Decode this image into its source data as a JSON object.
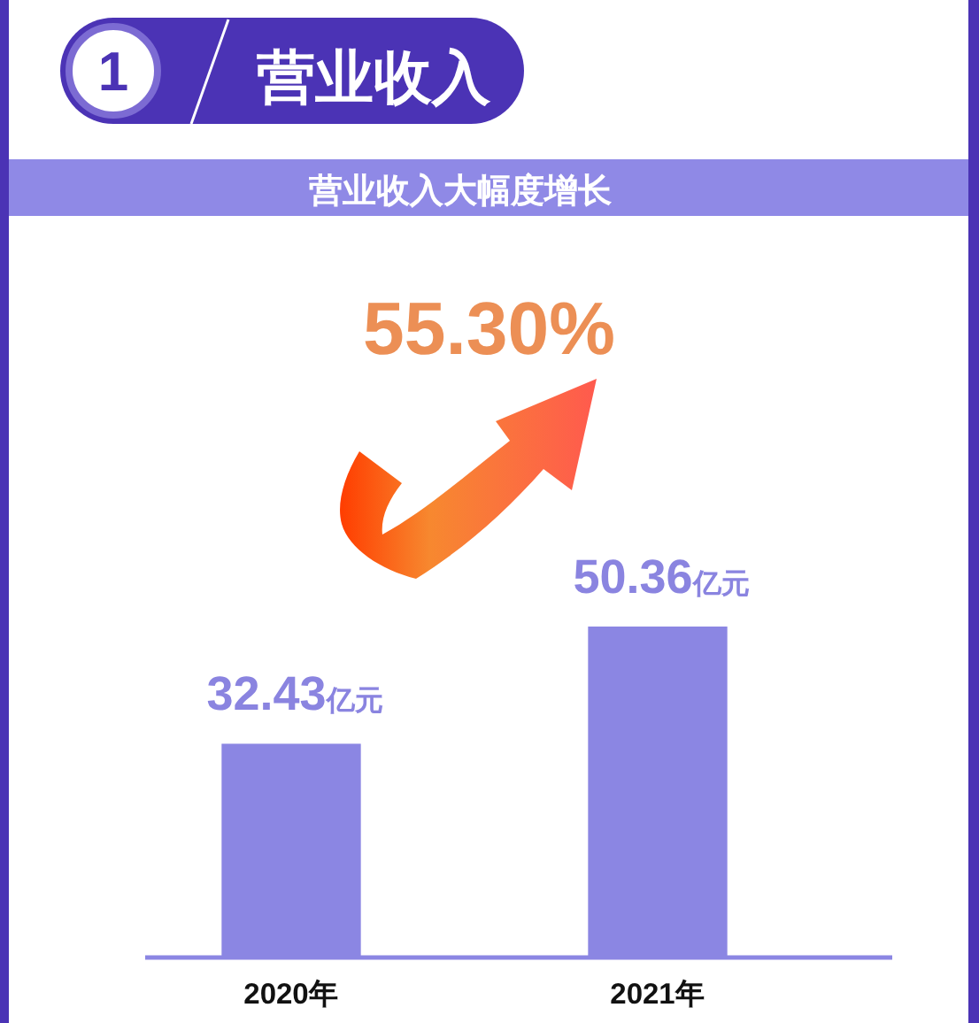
{
  "chart_data": {
    "type": "bar",
    "title": "营业收入",
    "subtitle": "营业收入大幅度增长",
    "categories": [
      "2020年",
      "2021年"
    ],
    "values": [
      32.43,
      50.36
    ],
    "value_labels": [
      "32.43亿元",
      "50.36亿元"
    ],
    "color": "#8b86e3",
    "annotations": [
      "1",
      "55.30%"
    ]
  }
}
